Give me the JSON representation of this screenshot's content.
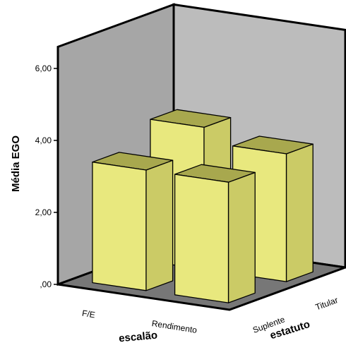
{
  "chart_data": {
    "type": "bar",
    "variant": "3d-clustered",
    "title": "",
    "ylabel": "Média EGO",
    "ylim": [
      0,
      6.6
    ],
    "yticks": [
      {
        "value": 0,
        "label": ",00"
      },
      {
        "value": 2,
        "label": "2,00"
      },
      {
        "value": 4,
        "label": "4,00"
      },
      {
        "value": 6,
        "label": "6,00"
      }
    ],
    "x_axis": {
      "label": "escalão",
      "categories": [
        "F/E",
        "Rendimento"
      ]
    },
    "depth_axis": {
      "label": "estatuto",
      "categories": [
        "Suplente",
        "Titular"
      ]
    },
    "series": [
      {
        "name": "Suplente",
        "values": [
          3.35,
          3.35
        ]
      },
      {
        "name": "Titular",
        "values": [
          3.95,
          3.55
        ]
      }
    ],
    "colors": {
      "bar_front": "#e8e87e",
      "bar_top": "#a8a84e",
      "bar_side": "#cbcb66",
      "back_wall": "#a6a6a6",
      "side_wall": "#bcbcbc",
      "floor": "#777777"
    },
    "grid": false,
    "legend": "none"
  }
}
